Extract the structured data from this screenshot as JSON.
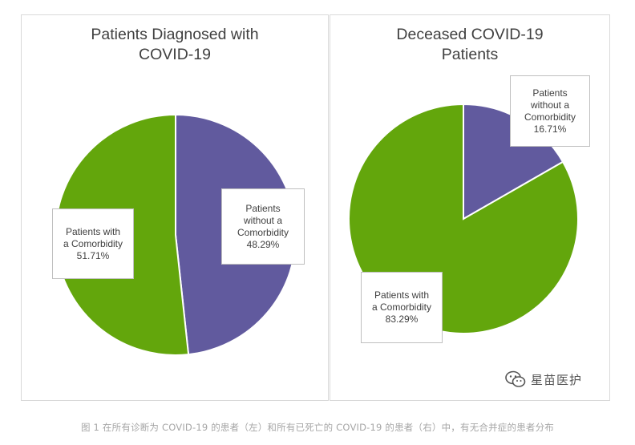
{
  "chart_data": [
    {
      "type": "pie",
      "title": "Patients Diagnosed with COVID-19",
      "title_lines": [
        "Patients Diagnosed with",
        "COVID-19"
      ],
      "slices": [
        {
          "label_lines": [
            "Patients",
            "without a",
            "Comorbidity"
          ],
          "value_text": "48.29%",
          "value": 48.29,
          "color": "#615a9e"
        },
        {
          "label_lines": [
            "Patients with",
            "a Comorbidity"
          ],
          "value_text": "51.71%",
          "value": 51.71,
          "color": "#63a60c"
        }
      ]
    },
    {
      "type": "pie",
      "title": "Deceased COVID-19 Patients",
      "title_lines": [
        "Deceased COVID-19",
        "Patients"
      ],
      "slices": [
        {
          "label_lines": [
            "Patients",
            "without a",
            "Comorbidity"
          ],
          "value_text": "16.71%",
          "value": 16.71,
          "color": "#615a9e"
        },
        {
          "label_lines": [
            "Patients with",
            "a Comorbidity"
          ],
          "value_text": "83.29%",
          "value": 83.29,
          "color": "#63a60c"
        }
      ]
    }
  ],
  "watermark": {
    "text": "星苗医护",
    "icon": "wechat-icon"
  },
  "caption": "图 1 在所有诊断为 COVID-19 的患者（左）和所有已死亡的 COVID-19 的患者（右）中，有无合并症的患者分布"
}
